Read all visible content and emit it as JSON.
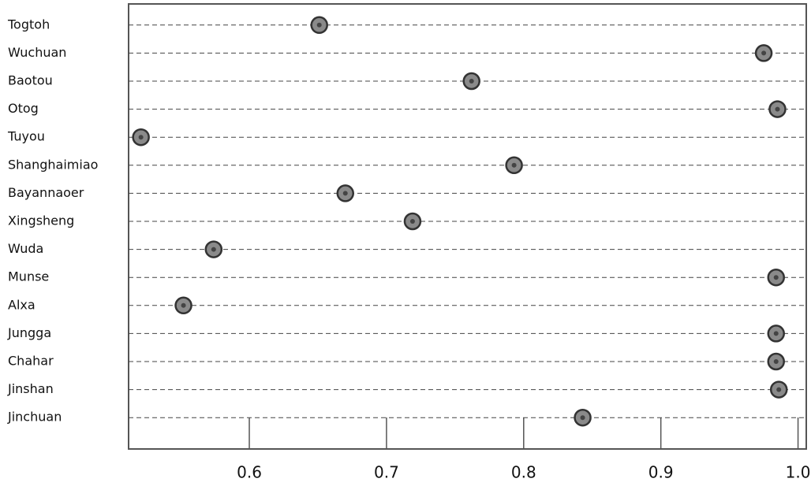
{
  "chart_data": {
    "type": "dot",
    "categories": [
      "Togtoh",
      "Wuchuan",
      "Baotou",
      "Otog",
      "Tuyou",
      "Shanghaimiao",
      "Bayannaoer",
      "Xingsheng",
      "Wuda",
      "Munse",
      "Alxa",
      "Jungga",
      "Chahar",
      "Jinshan",
      "Jinchuan"
    ],
    "values": [
      0.651,
      0.975,
      0.762,
      0.985,
      0.521,
      0.793,
      0.67,
      0.719,
      0.574,
      0.984,
      0.552,
      0.984,
      0.984,
      0.986,
      0.843
    ],
    "color": "#8a8a8a",
    "xlim": [
      0.512,
      1.006
    ],
    "xticks": [
      0.6,
      0.7,
      0.8,
      0.9,
      {
        "value": 1,
        "label": "1.0"
      }
    ]
  }
}
